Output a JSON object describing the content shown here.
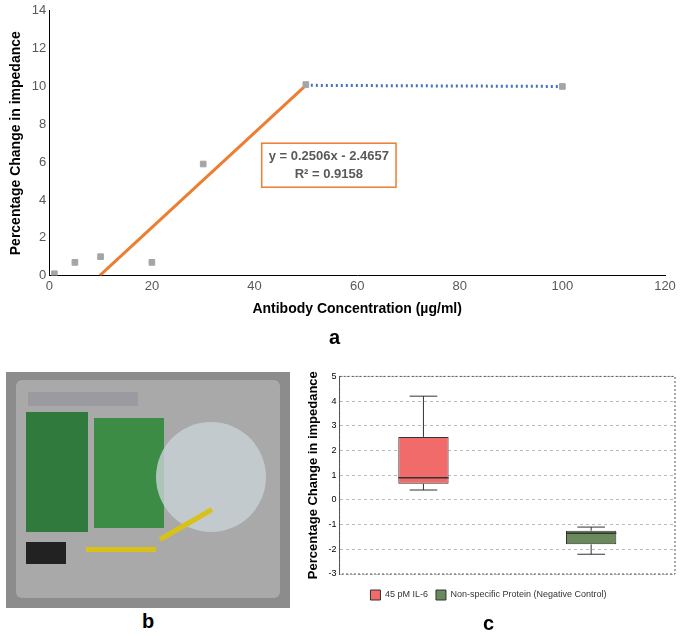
{
  "chart_data": [
    {
      "type": "scatter",
      "title": "a",
      "x_label": "Antibody Concentration (µg/ml)",
      "y_label": "Percentage Change in impedance",
      "annotations": [
        "y = 0.2506x - 2.4657",
        "R² = 0.9158"
      ],
      "series": [
        {
          "type": "scatter",
          "color": "#a5a5a5",
          "marker": "square",
          "x": [
            1,
            5,
            10,
            20,
            30,
            50,
            100
          ],
          "values": [
            0.1,
            0.7,
            1.0,
            0.7,
            5.9,
            10.1,
            10.0
          ]
        },
        {
          "type": "line",
          "color": "#ed7d31",
          "line_style": "solid",
          "x": [
            9.84,
            50
          ],
          "values": [
            0,
            10.06
          ]
        },
        {
          "type": "line",
          "color": "#4472c4",
          "line_style": "dotted",
          "x": [
            50,
            100
          ],
          "values": [
            10.06,
            10.0
          ]
        }
      ],
      "xlim": [
        0,
        120
      ],
      "xticks": [
        0,
        20,
        40,
        60,
        80,
        100,
        120
      ],
      "ylim": [
        0,
        14
      ],
      "yticks": [
        0,
        2,
        4,
        6,
        8,
        10,
        12,
        14
      ],
      "grid": false
    },
    {
      "type": "box",
      "title": "c",
      "y_label": "Percentage Change in impedance",
      "series": [
        {
          "name": "45 pM IL-6",
          "color": "#f26b6b",
          "min": 0.4,
          "q1": 0.65,
          "median": 0.9,
          "q3": 2.55,
          "max": 4.2
        },
        {
          "name": "Non-specific Protein (Negative Control)",
          "color": "#6b8a5c",
          "min": -2.2,
          "q1": -1.8,
          "median": -1.35,
          "q3": -1.25,
          "max": -1.1
        }
      ],
      "ylim": [
        -3,
        5
      ],
      "yticks": [
        -3,
        -2,
        -1,
        0,
        1,
        2,
        3,
        4,
        5
      ],
      "grid": true,
      "legend": "bottom",
      "tick_labels": "y"
    }
  ],
  "photo": {
    "title": "b"
  }
}
